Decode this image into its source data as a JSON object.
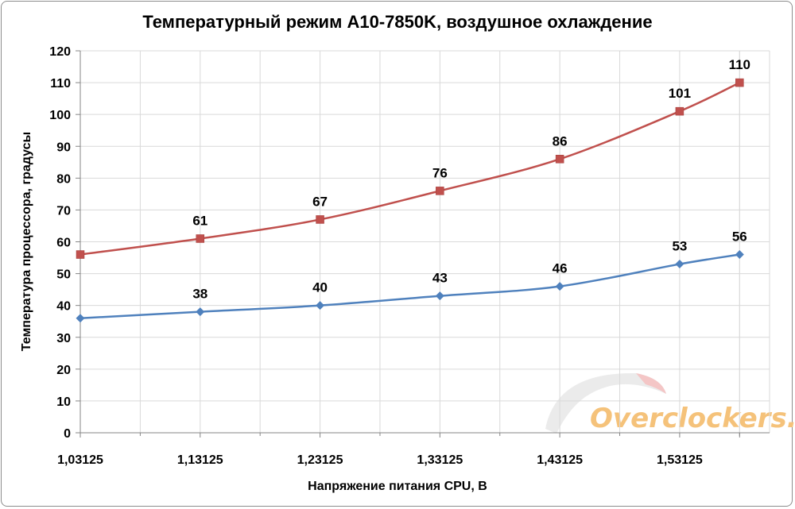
{
  "chart_data": {
    "type": "line",
    "title": "Температурный режим A10-7850K, воздушное охлаждение",
    "xlabel": "Напряжение питания CPU, В",
    "ylabel": "Температура процессора, градусы",
    "categories": [
      "1,03125",
      "1,13125",
      "1,23125",
      "1,33125",
      "1,43125",
      "1,53125",
      ""
    ],
    "x": [
      1.03125,
      1.13125,
      1.23125,
      1.33125,
      1.43125,
      1.53125,
      1.58125
    ],
    "ylim": [
      0,
      120
    ],
    "ystep": 10,
    "grid": true,
    "smooth": true,
    "series": [
      {
        "color": "#c0504d",
        "marker": "square",
        "values": [
          56,
          61,
          67,
          76,
          86,
          101,
          110
        ],
        "labels": [
          "",
          "61",
          "67",
          "76",
          "86",
          "101",
          "110"
        ]
      },
      {
        "color": "#4f81bd",
        "marker": "diamond",
        "values": [
          36,
          38,
          40,
          43,
          46,
          53,
          56
        ],
        "labels": [
          "",
          "38",
          "40",
          "43",
          "46",
          "53",
          "56"
        ]
      }
    ]
  },
  "watermark": {
    "text": "Overclockers.ru",
    "color": "#f5c27a"
  }
}
